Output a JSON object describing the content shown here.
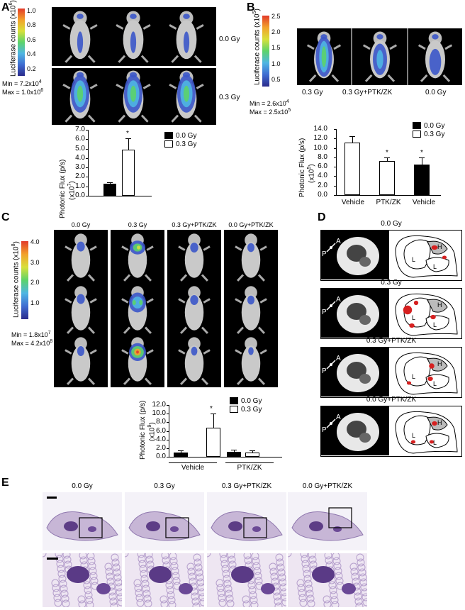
{
  "panels": {
    "A": {
      "label": "A",
      "colorbar_title": "Luciferase counts (x10",
      "colorbar_exp": "6",
      "colorbar_close": ")",
      "colorbar_ticks": [
        "1.0",
        "0.8",
        "0.6",
        "0.4",
        "0.2"
      ],
      "min_text": "Min = 7.2x10",
      "min_exp": "4",
      "max_text": "Max = 1.0x10",
      "max_exp": "6",
      "row_labels": [
        "0.0 Gy",
        "0.3 Gy"
      ],
      "y_axis_label": "Photonic Flux (p/s)",
      "y_axis_unit": "(x10",
      "y_axis_unit_exp": "7",
      "y_axis_unit_close": ")",
      "legend": [
        "0.0 Gy",
        "0.3 Gy"
      ],
      "asterisk": "*"
    },
    "B": {
      "label": "B",
      "colorbar_title": "Luciferase counts (x10",
      "colorbar_exp": "5",
      "colorbar_close": ")",
      "colorbar_ticks": [
        "2.5",
        "2.0",
        "1.5",
        "1.0",
        "0.5"
      ],
      "min_text": "Min = 2.6x10",
      "min_exp": "4",
      "max_text": "Max = 2.5x10",
      "max_exp": "5",
      "col_labels": [
        "0.3 Gy",
        "0.3 Gy+PTK/ZK",
        "0.0 Gy"
      ],
      "y_axis_label": "Photonic Flux (p/s)",
      "y_axis_unit": "(x10",
      "y_axis_unit_exp": "5",
      "y_axis_unit_close": ")",
      "legend": [
        "0.0 Gy",
        "0.3 Gy"
      ],
      "categories": [
        "Vehicle",
        "PTK/ZK",
        "Vehicle"
      ],
      "asterisk": "*"
    },
    "C": {
      "label": "C",
      "colorbar_title": "Luciferase counts (x10",
      "colorbar_exp": "8",
      "colorbar_close": ")",
      "colorbar_ticks": [
        "4.0",
        "3.0",
        "2.0",
        "1.0"
      ],
      "min_text": "Min = 1.8x10",
      "min_exp": "7",
      "max_text": "Max = 4.2x10",
      "max_exp": "8",
      "col_labels": [
        "0.0 Gy",
        "0.3 Gy",
        "0.3 Gy+PTK/ZK",
        "0.0 Gy+PTK/ZK"
      ],
      "y_axis_label": "Photonic Flux (p/s)",
      "y_axis_unit": "(x10",
      "y_axis_unit_exp": "9",
      "y_axis_unit_close": ")",
      "legend": [
        "0.0 Gy",
        "0.3 Gy"
      ],
      "groups": [
        "Vehicle",
        "PTK/ZK"
      ],
      "asterisk": "*"
    },
    "D": {
      "label": "D",
      "titles": [
        "0.0 Gy",
        "0.3 Gy",
        "0.3 Gy+PTK/ZK",
        "0.0 Gy+PTK/ZK"
      ],
      "orient_a": "A",
      "orient_p": "P",
      "lung_l": "L",
      "heart_h": "H"
    },
    "E": {
      "label": "E",
      "col_labels": [
        "0.0 Gy",
        "0.3 Gy",
        "0.3 Gy+PTK/ZK",
        "0.0 Gy+PTK/ZK"
      ]
    }
  },
  "chart_data": [
    {
      "type": "bar",
      "panel": "A",
      "categories": [
        "0.0 Gy",
        "0.3 Gy"
      ],
      "values": [
        1.3,
        4.9
      ],
      "errors": [
        0.1,
        1.2
      ],
      "ylim": [
        0,
        7.0
      ],
      "yticks": [
        "0.0",
        "1.0",
        "2.0",
        "3.0",
        "4.0",
        "5.0",
        "6.0",
        "7.0"
      ],
      "colors": [
        "#000000",
        "#ffffff"
      ]
    },
    {
      "type": "bar",
      "panel": "B",
      "categories": [
        "Vehicle",
        "PTK/ZK",
        "Vehicle"
      ],
      "values": [
        11.2,
        7.2,
        6.5
      ],
      "errors": [
        1.3,
        0.8,
        1.5
      ],
      "ylim": [
        0,
        14.0
      ],
      "yticks": [
        "0.0",
        "2.0",
        "4.0",
        "6.0",
        "8.0",
        "10.0",
        "12.0",
        "14.0"
      ],
      "colors": [
        "#ffffff",
        "#ffffff",
        "#000000"
      ]
    },
    {
      "type": "bar",
      "panel": "C",
      "series": [
        {
          "name": "0.0 Gy",
          "values": [
            1.0,
            1.1
          ],
          "errors": [
            0.4,
            0.6
          ]
        },
        {
          "name": "0.3 Gy",
          "values": [
            6.8,
            1.0
          ],
          "errors": [
            3.2,
            0.5
          ]
        }
      ],
      "categories": [
        "Vehicle",
        "PTK/ZK"
      ],
      "ylim": [
        0,
        12.0
      ],
      "yticks": [
        "0.0",
        "2.0",
        "4.0",
        "6.0",
        "8.0",
        "10.0",
        "12.0"
      ]
    }
  ]
}
